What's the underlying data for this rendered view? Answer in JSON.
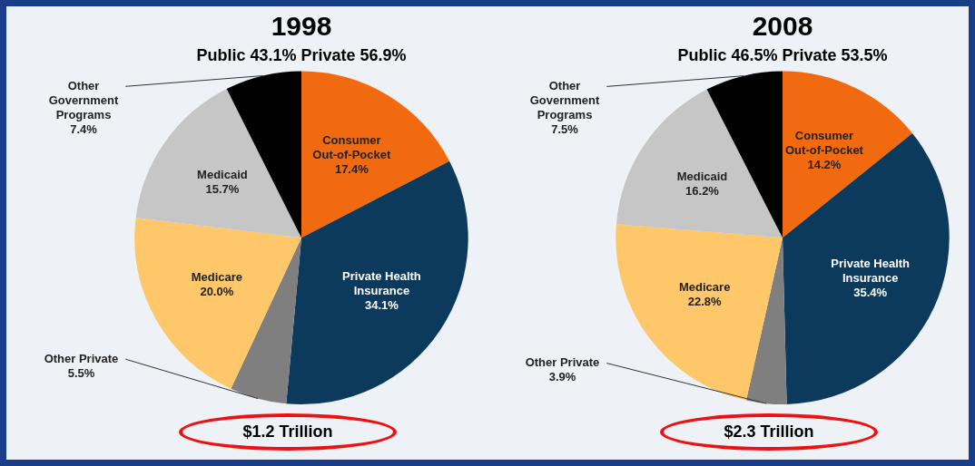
{
  "chart_data": [
    {
      "type": "pie",
      "title": "1998",
      "subtitle": "Public 43.1% Private 56.9%",
      "categories": [
        "Consumer Out-of-Pocket",
        "Private Health Insurance",
        "Other Private",
        "Medicare",
        "Medicaid",
        "Other Government Programs"
      ],
      "values": [
        17.4,
        34.1,
        5.5,
        20.0,
        15.7,
        7.4
      ],
      "value_labels": [
        "17.4%",
        "34.1%",
        "5.5%",
        "20.0%",
        "15.7%",
        "7.4%"
      ],
      "colors": [
        "#f26a10",
        "#0b3a5c",
        "#7f7f7f",
        "#fdc76a",
        "#c6c6c6",
        "#000000"
      ],
      "legend": false,
      "annotations": [
        "$1.2 Trillion"
      ]
    },
    {
      "type": "pie",
      "title": "2008",
      "subtitle": "Public 46.5% Private 53.5%",
      "categories": [
        "Consumer Out-of-Pocket",
        "Private Health Insurance",
        "Other Private",
        "Medicare",
        "Medicaid",
        "Other Government Programs"
      ],
      "values": [
        14.2,
        35.4,
        3.9,
        22.8,
        16.2,
        7.5
      ],
      "value_labels": [
        "14.2%",
        "35.4%",
        "3.9%",
        "22.8%",
        "16.2%",
        "7.5%"
      ],
      "colors": [
        "#f26a10",
        "#0b3a5c",
        "#7f7f7f",
        "#fdc76a",
        "#c6c6c6",
        "#000000"
      ],
      "legend": false,
      "annotations": [
        "$2.3 Trillion"
      ]
    }
  ]
}
